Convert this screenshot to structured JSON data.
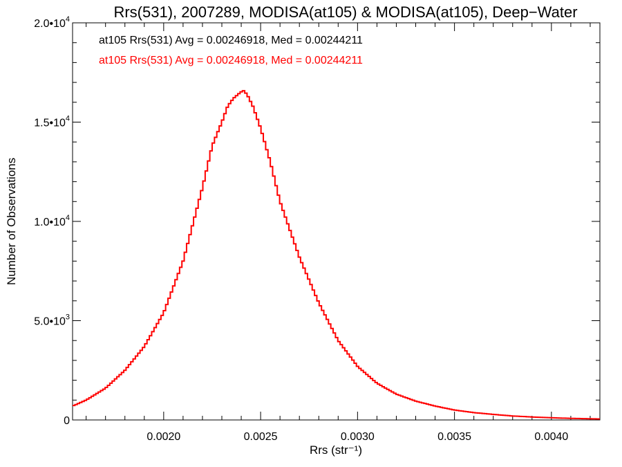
{
  "chart_data": {
    "type": "line",
    "title": "Rrs(531), 2007289, MODISA(at105) & MODISA(at105), Deep−Water",
    "xlabel": "Rrs (str⁻¹)",
    "ylabel": "Number of Observations",
    "xlim": [
      0.00153,
      0.00425
    ],
    "ylim": [
      0,
      20000
    ],
    "x_ticks": [
      {
        "value": 0.002,
        "label": "0.0020"
      },
      {
        "value": 0.0025,
        "label": "0.0025"
      },
      {
        "value": 0.003,
        "label": "0.0030"
      },
      {
        "value": 0.0035,
        "label": "0.0035"
      },
      {
        "value": 0.004,
        "label": "0.0040"
      }
    ],
    "y_ticks": [
      {
        "value": 0,
        "label": "0"
      },
      {
        "value": 5000,
        "label": "5.0•10",
        "exp": "3"
      },
      {
        "value": 10000,
        "label": "1.0•10",
        "exp": "4"
      },
      {
        "value": 15000,
        "label": "1.5•10",
        "exp": "4"
      },
      {
        "value": 20000,
        "label": "2.0•10",
        "exp": "4"
      }
    ],
    "legend": [
      {
        "text": "at105 Rrs(531) Avg = 0.00246918, Med = 0.00244211",
        "color": "#000000"
      },
      {
        "text": "at105 Rrs(531) Avg = 0.00246918, Med = 0.00244211",
        "color": "#ff0000"
      }
    ],
    "series": [
      {
        "color": "#ff0000",
        "style": "step",
        "x": [
          0.00153,
          0.0016,
          0.0017,
          0.0018,
          0.0019,
          0.002,
          0.0021,
          0.0022,
          0.00225,
          0.0023,
          0.00233,
          0.00236,
          0.00239,
          0.00241,
          0.00243,
          0.00246,
          0.0025,
          0.00255,
          0.0026,
          0.0027,
          0.0028,
          0.0029,
          0.003,
          0.0031,
          0.0032,
          0.0033,
          0.0034,
          0.0035,
          0.0036,
          0.0037,
          0.0038,
          0.0039,
          0.004,
          0.0041,
          0.00425
        ],
        "y": [
          700,
          1000,
          1600,
          2500,
          3700,
          5400,
          8000,
          11700,
          13800,
          15000,
          15800,
          16200,
          16450,
          16600,
          16400,
          15800,
          14700,
          13000,
          11000,
          8200,
          5900,
          4000,
          2700,
          1850,
          1300,
          950,
          700,
          500,
          370,
          280,
          200,
          150,
          110,
          80,
          50
        ]
      }
    ]
  }
}
